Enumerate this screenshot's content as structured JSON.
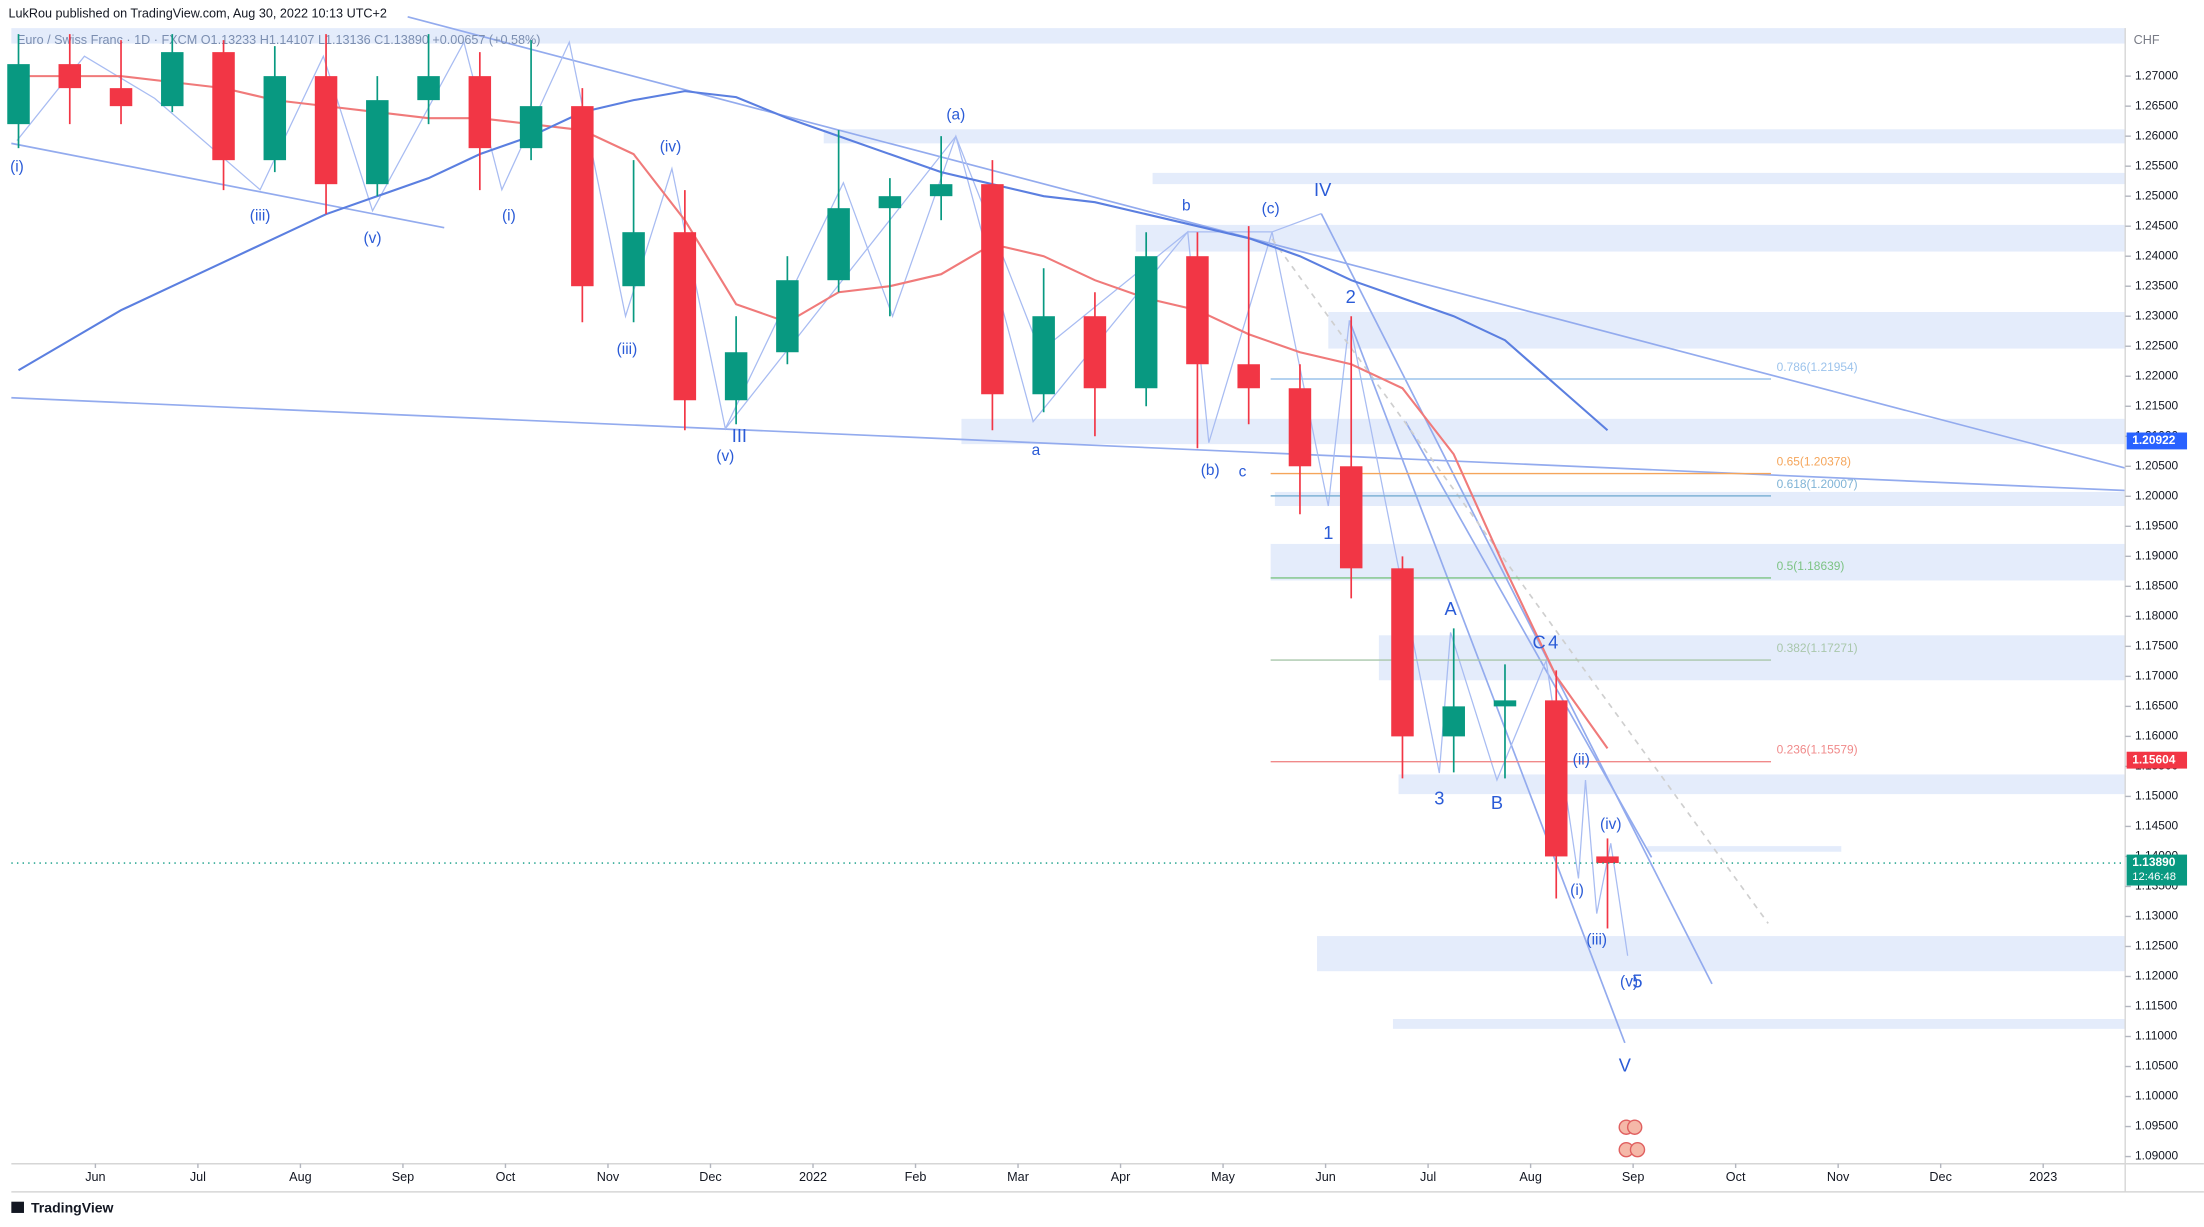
{
  "chart_data": {
    "type": "candlestick",
    "header": "LukRou published on TradingView.com, Aug 30, 2022 10:13 UTC+2",
    "legend_text": "Euro / Swiss Franc · 1D · FXCM   O1.13233  H1.14107  L1.13136  C1.13890  +0.00657 (+0.58%)",
    "currency": "CHF",
    "footer": "TradingView",
    "countdown": "12:46:48",
    "up_color": "#089981",
    "down_color": "#f23645",
    "x": [
      0.25,
      0.75,
      1.25,
      1.75,
      2.25,
      2.75,
      3.25,
      3.75,
      4.25,
      4.75,
      5.25,
      5.75,
      6.25,
      6.75,
      7.25,
      7.75,
      8.25,
      8.75,
      9.25,
      9.75,
      10.25,
      10.75,
      11.25,
      11.75,
      12.25,
      12.75,
      13.25,
      13.75,
      14.25,
      14.75,
      15.25,
      15.75
    ],
    "open": [
      1.262,
      1.272,
      1.268,
      1.265,
      1.274,
      1.256,
      1.27,
      1.252,
      1.266,
      1.27,
      1.258,
      1.265,
      1.235,
      1.244,
      1.216,
      1.224,
      1.236,
      1.248,
      1.25,
      1.252,
      1.217,
      1.23,
      1.218,
      1.24,
      1.222,
      1.218,
      1.205,
      1.188,
      1.16,
      1.165,
      1.166,
      1.14
    ],
    "high": [
      1.277,
      1.277,
      1.276,
      1.277,
      1.276,
      1.275,
      1.277,
      1.27,
      1.277,
      1.274,
      1.276,
      1.268,
      1.256,
      1.251,
      1.23,
      1.24,
      1.261,
      1.253,
      1.26,
      1.256,
      1.238,
      1.234,
      1.244,
      1.244,
      1.245,
      1.222,
      1.23,
      1.19,
      1.178,
      1.172,
      1.171,
      1.143
    ],
    "low": [
      1.258,
      1.262,
      1.262,
      1.264,
      1.251,
      1.254,
      1.247,
      1.25,
      1.262,
      1.251,
      1.256,
      1.229,
      1.229,
      1.211,
      1.212,
      1.222,
      1.234,
      1.23,
      1.246,
      1.211,
      1.214,
      1.21,
      1.215,
      1.208,
      1.212,
      1.197,
      1.183,
      1.153,
      1.154,
      1.153,
      1.133,
      1.128
    ],
    "close": [
      1.272,
      1.268,
      1.265,
      1.274,
      1.256,
      1.27,
      1.252,
      1.266,
      1.27,
      1.258,
      1.265,
      1.235,
      1.244,
      1.216,
      1.224,
      1.236,
      1.248,
      1.25,
      1.252,
      1.217,
      1.23,
      1.218,
      1.24,
      1.222,
      1.218,
      1.205,
      1.188,
      1.16,
      1.165,
      1.166,
      1.14,
      1.1389
    ],
    "lines": [
      {
        "color": "#f07a7a",
        "values": [
          1.27,
          1.27,
          1.27,
          1.269,
          1.268,
          1.266,
          1.265,
          1.264,
          1.263,
          1.263,
          1.262,
          1.261,
          1.257,
          1.246,
          1.232,
          1.229,
          1.234,
          1.235,
          1.237,
          1.242,
          1.24,
          1.236,
          1.233,
          1.231,
          1.227,
          1.224,
          1.222,
          1.218,
          1.207,
          1.188,
          1.17,
          1.158
        ]
      },
      {
        "color": "#5b7fe0",
        "values": [
          1.221,
          1.226,
          1.231,
          1.235,
          1.239,
          1.243,
          1.247,
          1.25,
          1.253,
          1.257,
          1.26,
          1.264,
          1.266,
          1.2675,
          1.2665,
          1.263,
          1.26,
          1.257,
          1.254,
          1.252,
          1.25,
          1.249,
          1.247,
          1.245,
          1.243,
          1.24,
          1.236,
          1.233,
          1.23,
          1.226,
          1.2185,
          1.211
        ]
      }
    ],
    "xlim": [
      0.18,
      20.8
    ],
    "ylim": [
      1.0888,
      1.278
    ],
    "grid": false,
    "xticks": [
      {
        "value": 1,
        "label": "Jun"
      },
      {
        "value": 2,
        "label": "Jul"
      },
      {
        "value": 3,
        "label": "Aug"
      },
      {
        "value": 4,
        "label": "Sep"
      },
      {
        "value": 5,
        "label": "Oct"
      },
      {
        "value": 6,
        "label": "Nov"
      },
      {
        "value": 7,
        "label": "Dec"
      },
      {
        "value": 8,
        "label": "2022"
      },
      {
        "value": 9,
        "label": "Feb"
      },
      {
        "value": 10,
        "label": "Mar"
      },
      {
        "value": 11,
        "label": "Apr"
      },
      {
        "value": 12,
        "label": "May"
      },
      {
        "value": 13,
        "label": "Jun"
      },
      {
        "value": 14,
        "label": "Jul"
      },
      {
        "value": 15,
        "label": "Aug"
      },
      {
        "value": 16,
        "label": "Sep"
      },
      {
        "value": 17,
        "label": "Oct"
      },
      {
        "value": 18,
        "label": "Nov"
      },
      {
        "value": 19,
        "label": "Dec"
      },
      {
        "value": 20,
        "label": "2023"
      }
    ],
    "yticks": [
      {
        "value": 1.09,
        "label": "1.09000"
      },
      {
        "value": 1.095,
        "label": "1.09500"
      },
      {
        "value": 1.1,
        "label": "1.10000"
      },
      {
        "value": 1.105,
        "label": "1.10500"
      },
      {
        "value": 1.11,
        "label": "1.11000"
      },
      {
        "value": 1.115,
        "label": "1.11500"
      },
      {
        "value": 1.12,
        "label": "1.12000"
      },
      {
        "value": 1.125,
        "label": "1.12500"
      },
      {
        "value": 1.13,
        "label": "1.13000"
      },
      {
        "value": 1.135,
        "label": "1.13500"
      },
      {
        "value": 1.14,
        "label": "1.14000"
      },
      {
        "value": 1.145,
        "label": "1.14500"
      },
      {
        "value": 1.15,
        "label": "1.15000"
      },
      {
        "value": 1.155,
        "label": "1.15500"
      },
      {
        "value": 1.16,
        "label": "1.16000"
      },
      {
        "value": 1.165,
        "label": "1.16500"
      },
      {
        "value": 1.17,
        "label": "1.17000"
      },
      {
        "value": 1.175,
        "label": "1.17500"
      },
      {
        "value": 1.18,
        "label": "1.18000"
      },
      {
        "value": 1.185,
        "label": "1.18500"
      },
      {
        "value": 1.19,
        "label": "1.19000"
      },
      {
        "value": 1.195,
        "label": "1.19500"
      },
      {
        "value": 1.2,
        "label": "1.20000"
      },
      {
        "value": 1.205,
        "label": "1.20500"
      },
      {
        "value": 1.21,
        "label": "1.21000"
      },
      {
        "value": 1.215,
        "label": "1.21500"
      },
      {
        "value": 1.22,
        "label": "1.22000"
      },
      {
        "value": 1.225,
        "label": "1.22500"
      },
      {
        "value": 1.23,
        "label": "1.23000"
      },
      {
        "value": 1.235,
        "label": "1.23500"
      },
      {
        "value": 1.24,
        "label": "1.24000"
      },
      {
        "value": 1.245,
        "label": "1.24500"
      },
      {
        "value": 1.25,
        "label": "1.25000"
      },
      {
        "value": 1.255,
        "label": "1.25500"
      },
      {
        "value": 1.26,
        "label": "1.26000"
      },
      {
        "value": 1.265,
        "label": "1.26500"
      },
      {
        "value": 1.27,
        "label": "1.27000"
      }
    ],
    "fib_levels": [
      {
        "label": "0.786(1.21954)",
        "value": 1.21954,
        "color": "#9cc3ec"
      },
      {
        "label": "0.65(1.20378)",
        "value": 1.20378,
        "color": "#f5a55a"
      },
      {
        "label": "0.618(1.20007)",
        "value": 1.20007,
        "color": "#7fb3d6"
      },
      {
        "label": "0.5(1.18639)",
        "value": 1.18639,
        "color": "#7cc383"
      },
      {
        "label": "0.382(1.17271)",
        "value": 1.17271,
        "color": "#a9c7ab"
      },
      {
        "label": "0.236(1.15579)",
        "value": 1.15579,
        "color": "#f08a8a"
      }
    ],
    "price_tags": [
      {
        "label": "1.20922",
        "value": 1.20922,
        "color": "#2962ff"
      },
      {
        "label": "1.15604",
        "value": 1.15604,
        "color": "#f23645"
      },
      {
        "label": "1.13890",
        "value": 1.1389,
        "color": "#089981"
      }
    ],
    "annotations": [
      "(i)",
      "(iii)",
      "(v)",
      "(i)",
      "(iv)",
      "(iii)",
      "(v)",
      "III",
      "(a)",
      "a",
      "b",
      "(b)",
      "c",
      "(c)",
      "IV",
      "2",
      "1",
      "3",
      "A",
      "B",
      "C",
      "4",
      "(ii)",
      "(iv)",
      "(i)",
      "(iii)",
      "(v)",
      "5",
      "V"
    ]
  }
}
